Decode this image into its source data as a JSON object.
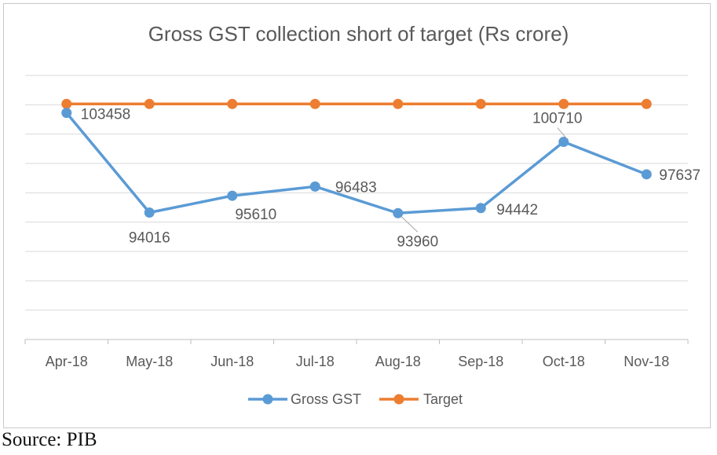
{
  "source": "Source: PIB",
  "chart_data": {
    "type": "line",
    "title": "Gross GST collection short of target (Rs crore)",
    "xlabel": "",
    "ylabel": "",
    "categories": [
      "Apr-18",
      "May-18",
      "Jun-18",
      "Jul-18",
      "Aug-18",
      "Sep-18",
      "Oct-18",
      "Nov-18"
    ],
    "ylim": [
      82000,
      107000
    ],
    "y_axis_labels_shown": false,
    "grid": true,
    "legend_position": "bottom",
    "series": [
      {
        "name": "Gross GST",
        "color": "#5b9bd5",
        "values": [
          103458,
          94016,
          95610,
          96483,
          93960,
          94442,
          100710,
          97637
        ],
        "data_labels": true
      },
      {
        "name": "Target",
        "color": "#ed7d31",
        "values": [
          104300,
          104300,
          104300,
          104300,
          104300,
          104300,
          104300,
          104300
        ],
        "data_labels": false
      }
    ]
  }
}
